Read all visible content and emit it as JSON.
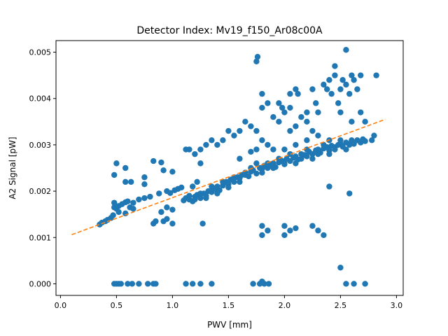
{
  "chart_data": {
    "type": "scatter",
    "title": "Detector Index: Mv19_f150_Ar08c00A",
    "xlabel": "PWV [mm]",
    "ylabel": "A2 Signal [pW]",
    "xlim": [
      -0.04,
      3.06
    ],
    "ylim": [
      -0.00025,
      0.00525
    ],
    "x_ticks": [
      "0.0",
      "0.5",
      "1.0",
      "1.5",
      "2.0",
      "2.5",
      "3.0"
    ],
    "x_tick_values": [
      0.0,
      0.5,
      1.0,
      1.5,
      2.0,
      2.5,
      3.0
    ],
    "y_ticks": [
      "0.000",
      "0.001",
      "0.002",
      "0.003",
      "0.004",
      "0.005"
    ],
    "y_tick_values": [
      0.0,
      0.001,
      0.002,
      0.003,
      0.004,
      0.005
    ],
    "grid": false,
    "colors": {
      "points": "#1f77b4",
      "fit": "#ff7f0e",
      "axes": "#000000"
    },
    "fit_line": {
      "name": "linear fit",
      "style": "dashed",
      "x": [
        0.1,
        2.9
      ],
      "y": [
        0.00106,
        0.00355
      ]
    },
    "series": [
      {
        "name": "A2 Signal",
        "points": [
          [
            0.48,
            0.0
          ],
          [
            0.5,
            0.0
          ],
          [
            0.52,
            0.0
          ],
          [
            0.54,
            0.0
          ],
          [
            0.6,
            0.0
          ],
          [
            0.64,
            0.0
          ],
          [
            0.7,
            0.0
          ],
          [
            0.78,
            0.0
          ],
          [
            0.83,
            0.0
          ],
          [
            0.85,
            0.0
          ],
          [
            1.12,
            0.0
          ],
          [
            1.18,
            0.0
          ],
          [
            1.25,
            0.0
          ],
          [
            1.35,
            0.0
          ],
          [
            1.72,
            0.0
          ],
          [
            1.78,
            0.0
          ],
          [
            1.8,
            5e-05
          ],
          [
            1.82,
            0.0
          ],
          [
            1.86,
            0.0
          ],
          [
            2.55,
            0.0
          ],
          [
            2.62,
            0.0
          ],
          [
            2.72,
            0.0
          ],
          [
            2.5,
            0.00035
          ],
          [
            0.35,
            0.00128
          ],
          [
            0.37,
            0.00132
          ],
          [
            0.4,
            0.00135
          ],
          [
            0.42,
            0.00138
          ],
          [
            0.45,
            0.00142
          ],
          [
            0.47,
            0.00148
          ],
          [
            0.48,
            0.00165
          ],
          [
            0.5,
            0.00162
          ],
          [
            0.52,
            0.00168
          ],
          [
            0.55,
            0.00172
          ],
          [
            0.58,
            0.00176
          ],
          [
            0.6,
            0.00178
          ],
          [
            0.62,
            0.00165
          ],
          [
            0.65,
            0.00175
          ],
          [
            0.7,
            0.00182
          ],
          [
            0.75,
            0.00185
          ],
          [
            0.48,
            0.00175
          ],
          [
            0.52,
            0.00155
          ],
          [
            0.58,
            0.00152
          ],
          [
            0.65,
            0.00162
          ],
          [
            0.8,
            0.00188
          ],
          [
            0.88,
            0.00195
          ],
          [
            0.95,
            0.002
          ],
          [
            0.98,
            0.00196
          ],
          [
            1.02,
            0.00202
          ],
          [
            1.05,
            0.00205
          ],
          [
            1.08,
            0.00208
          ],
          [
            0.85,
            0.00135
          ],
          [
            0.83,
            0.0013
          ],
          [
            0.92,
            0.00135
          ],
          [
            0.95,
            0.0014
          ],
          [
            1.0,
            0.0013
          ],
          [
            0.9,
            0.00155
          ],
          [
            0.95,
            0.00165
          ],
          [
            1.0,
            0.0016
          ],
          [
            0.5,
            0.0026
          ],
          [
            0.48,
            0.00235
          ],
          [
            0.58,
            0.0025
          ],
          [
            0.58,
            0.0022
          ],
          [
            0.63,
            0.0022
          ],
          [
            0.75,
            0.0023
          ],
          [
            0.75,
            0.00215
          ],
          [
            0.83,
            0.00265
          ],
          [
            0.9,
            0.00262
          ],
          [
            0.92,
            0.00245
          ],
          [
            1.0,
            0.00242
          ],
          [
            1.12,
            0.0029
          ],
          [
            1.15,
            0.0029
          ],
          [
            1.25,
            0.0029
          ],
          [
            1.18,
            0.0021
          ],
          [
            1.22,
            0.0022
          ],
          [
            1.27,
            0.0013
          ],
          [
            1.1,
            0.0018
          ],
          [
            1.12,
            0.00185
          ],
          [
            1.15,
            0.00182
          ],
          [
            1.18,
            0.00178
          ],
          [
            1.2,
            0.00188
          ],
          [
            1.22,
            0.00192
          ],
          [
            1.25,
            0.00185
          ],
          [
            1.28,
            0.00195
          ],
          [
            1.3,
            0.0019
          ],
          [
            1.32,
            0.002
          ],
          [
            1.35,
            0.00198
          ],
          [
            1.38,
            0.00205
          ],
          [
            1.4,
            0.0021
          ],
          [
            1.42,
            0.00202
          ],
          [
            1.45,
            0.00212
          ],
          [
            1.48,
            0.0022
          ],
          [
            1.5,
            0.00215
          ],
          [
            1.52,
            0.00225
          ],
          [
            1.55,
            0.0022
          ],
          [
            1.58,
            0.0023
          ],
          [
            1.6,
            0.00228
          ],
          [
            1.62,
            0.00235
          ],
          [
            1.65,
            0.0024
          ],
          [
            1.68,
            0.00232
          ],
          [
            1.7,
            0.00242
          ],
          [
            1.72,
            0.00245
          ],
          [
            1.75,
            0.00238
          ],
          [
            1.78,
            0.0025
          ],
          [
            1.8,
            0.00248
          ],
          [
            1.82,
            0.00255
          ],
          [
            1.85,
            0.0025
          ],
          [
            1.88,
            0.00258
          ],
          [
            1.9,
            0.0026
          ],
          [
            1.92,
            0.00252
          ],
          [
            1.95,
            0.00262
          ],
          [
            1.98,
            0.00265
          ],
          [
            2.0,
            0.00258
          ],
          [
            2.02,
            0.0027
          ],
          [
            2.05,
            0.00265
          ],
          [
            2.08,
            0.00272
          ],
          [
            2.1,
            0.00275
          ],
          [
            2.12,
            0.00268
          ],
          [
            2.15,
            0.0028
          ],
          [
            2.18,
            0.00278
          ],
          [
            2.2,
            0.00275
          ],
          [
            2.22,
            0.00285
          ],
          [
            2.25,
            0.0028
          ],
          [
            2.28,
            0.00288
          ],
          [
            2.3,
            0.0029
          ],
          [
            2.32,
            0.00283
          ],
          [
            2.35,
            0.00292
          ],
          [
            2.38,
            0.00295
          ],
          [
            2.4,
            0.00288
          ],
          [
            2.42,
            0.00298
          ],
          [
            2.45,
            0.00295
          ],
          [
            2.48,
            0.003
          ],
          [
            2.5,
            0.00302
          ],
          [
            2.52,
            0.00296
          ],
          [
            2.55,
            0.00305
          ],
          [
            2.58,
            0.003
          ],
          [
            2.6,
            0.00308
          ],
          [
            2.62,
            0.00302
          ],
          [
            2.65,
            0.0031
          ],
          [
            2.68,
            0.00305
          ],
          [
            2.7,
            0.00312
          ],
          [
            2.72,
            0.00308
          ],
          [
            2.78,
            0.0031
          ],
          [
            2.8,
            0.0032
          ],
          [
            1.15,
            0.0019
          ],
          [
            1.2,
            0.00182
          ],
          [
            1.25,
            0.00195
          ],
          [
            1.3,
            0.00185
          ],
          [
            1.35,
            0.0021
          ],
          [
            1.4,
            0.00195
          ],
          [
            1.45,
            0.0022
          ],
          [
            1.5,
            0.00208
          ],
          [
            1.55,
            0.0023
          ],
          [
            1.6,
            0.0022
          ],
          [
            1.65,
            0.00235
          ],
          [
            1.7,
            0.0025
          ],
          [
            1.75,
            0.0026
          ],
          [
            1.8,
            0.0024
          ],
          [
            1.85,
            0.0026
          ],
          [
            1.9,
            0.0025
          ],
          [
            1.95,
            0.0027
          ],
          [
            2.0,
            0.0026
          ],
          [
            2.05,
            0.0028
          ],
          [
            2.1,
            0.0026
          ],
          [
            2.15,
            0.0027
          ],
          [
            2.2,
            0.0029
          ],
          [
            2.25,
            0.0027
          ],
          [
            2.3,
            0.0028
          ],
          [
            2.35,
            0.003
          ],
          [
            2.4,
            0.0028
          ],
          [
            2.45,
            0.0029
          ],
          [
            2.5,
            0.0031
          ],
          [
            2.55,
            0.0029
          ],
          [
            2.6,
            0.0031
          ],
          [
            1.6,
            0.0027
          ],
          [
            1.7,
            0.00285
          ],
          [
            1.75,
            0.0029
          ],
          [
            1.8,
            0.0031
          ],
          [
            1.85,
            0.003
          ],
          [
            1.9,
            0.0029
          ],
          [
            2.0,
            0.0029
          ],
          [
            2.1,
            0.003
          ],
          [
            2.2,
            0.0031
          ],
          [
            2.3,
            0.0032
          ],
          [
            2.4,
            0.0031
          ],
          [
            1.4,
            0.003
          ],
          [
            1.45,
            0.0031
          ],
          [
            1.5,
            0.0033
          ],
          [
            1.55,
            0.0032
          ],
          [
            1.6,
            0.0033
          ],
          [
            1.65,
            0.0035
          ],
          [
            1.7,
            0.0034
          ],
          [
            1.75,
            0.0033
          ],
          [
            1.3,
            0.003
          ],
          [
            1.35,
            0.0031
          ],
          [
            1.2,
            0.0028
          ],
          [
            1.25,
            0.0026
          ],
          [
            1.75,
            0.0048
          ],
          [
            1.76,
            0.0049
          ],
          [
            1.8,
            0.0038
          ],
          [
            1.8,
            0.0041
          ],
          [
            1.85,
            0.0039
          ],
          [
            1.9,
            0.0036
          ],
          [
            1.95,
            0.0039
          ],
          [
            1.98,
            0.0038
          ],
          [
            2.0,
            0.0037
          ],
          [
            2.05,
            0.0038
          ],
          [
            2.05,
            0.0041
          ],
          [
            2.1,
            0.0042
          ],
          [
            2.12,
            0.0041
          ],
          [
            2.15,
            0.0036
          ],
          [
            2.2,
            0.0037
          ],
          [
            2.25,
            0.0042
          ],
          [
            2.28,
            0.0039
          ],
          [
            2.3,
            0.0037
          ],
          [
            2.35,
            0.0043
          ],
          [
            2.38,
            0.0042
          ],
          [
            2.4,
            0.0044
          ],
          [
            2.42,
            0.0041
          ],
          [
            2.45,
            0.0045
          ],
          [
            2.48,
            0.0039
          ],
          [
            2.5,
            0.0042
          ],
          [
            2.52,
            0.0044
          ],
          [
            2.55,
            0.0043
          ],
          [
            2.58,
            0.0041
          ],
          [
            2.6,
            0.0045
          ],
          [
            2.62,
            0.0044
          ],
          [
            2.65,
            0.0042
          ],
          [
            2.68,
            0.0045
          ],
          [
            2.82,
            0.0045
          ],
          [
            2.55,
            0.00505
          ],
          [
            2.45,
            0.0047
          ],
          [
            2.6,
            0.0035
          ],
          [
            2.68,
            0.0037
          ],
          [
            2.5,
            0.0037
          ],
          [
            2.72,
            0.0035
          ],
          [
            2.1,
            0.0034
          ],
          [
            2.2,
            0.0035
          ],
          [
            2.25,
            0.0033
          ],
          [
            1.95,
            0.0035
          ],
          [
            2.05,
            0.0033
          ],
          [
            1.8,
            0.00125
          ],
          [
            1.8,
            0.00105
          ],
          [
            1.85,
            0.00115
          ],
          [
            2.0,
            0.00125
          ],
          [
            2.0,
            0.00105
          ],
          [
            2.05,
            0.00115
          ],
          [
            2.1,
            0.0012
          ],
          [
            2.25,
            0.00125
          ],
          [
            2.3,
            0.00115
          ],
          [
            2.35,
            0.00105
          ],
          [
            2.4,
            0.0021
          ],
          [
            2.58,
            0.00195
          ]
        ]
      }
    ]
  }
}
